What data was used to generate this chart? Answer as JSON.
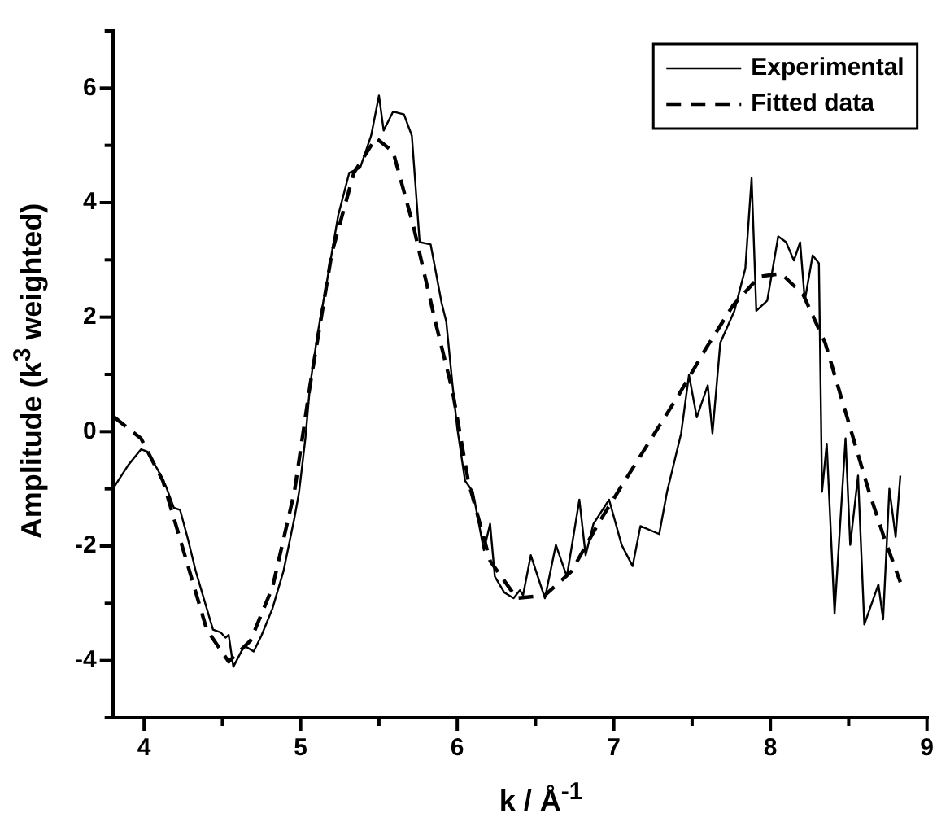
{
  "chart_data": {
    "type": "line",
    "xlabel": "k / Å$^{-1}$",
    "ylabel": "Amplitude (k$^{3}$ weighted)",
    "xlim": [
      3.8,
      9
    ],
    "ylim": [
      -5,
      7
    ],
    "xticks": [
      4,
      {
        "value": 4.5,
        "label": null
      },
      5,
      {
        "value": 5.5,
        "label": null
      },
      6,
      {
        "value": 6.5,
        "label": null
      },
      7,
      {
        "value": 7.5,
        "label": null
      },
      8,
      {
        "value": 8.5,
        "label": null
      },
      9
    ],
    "yticks": [
      {
        "value": -5,
        "label": null
      },
      -4,
      {
        "value": -3,
        "label": null
      },
      -2,
      {
        "value": -1,
        "label": null
      },
      0,
      {
        "value": 1,
        "label": null
      },
      2,
      {
        "value": 3,
        "label": null
      },
      4,
      {
        "value": 5,
        "label": null
      },
      6,
      {
        "value": 7,
        "label": null
      }
    ],
    "grid": false,
    "legend": "top right",
    "marker": "none",
    "series": [
      {
        "name": "Experimental",
        "color": "#000000",
        "line_style": "solid",
        "x": [
          3.81,
          3.9,
          3.98,
          4.02,
          4.09,
          4.14,
          4.19,
          4.23,
          4.28,
          4.33,
          4.4,
          4.44,
          4.49,
          4.52,
          4.54,
          4.57,
          4.64,
          4.7,
          4.75,
          4.82,
          4.89,
          4.96,
          4.99,
          5.03,
          5.06,
          5.11,
          5.17,
          5.24,
          5.31,
          5.38,
          5.45,
          5.5,
          5.53,
          5.59,
          5.66,
          5.71,
          5.76,
          5.83,
          5.9,
          5.93,
          5.97,
          6.0,
          6.05,
          6.1,
          6.17,
          6.21,
          6.24,
          6.3,
          6.36,
          6.4,
          6.42,
          6.47,
          6.56,
          6.63,
          6.7,
          6.78,
          6.82,
          6.87,
          6.97,
          7.05,
          7.12,
          7.17,
          7.29,
          7.34,
          7.43,
          7.48,
          7.53,
          7.6,
          7.63,
          7.68,
          7.77,
          7.84,
          7.88,
          7.91,
          7.98,
          8.05,
          8.1,
          8.15,
          8.19,
          8.22,
          8.27,
          8.31,
          8.33,
          8.36,
          8.41,
          8.48,
          8.51,
          8.56,
          8.6,
          8.69,
          8.72,
          8.76,
          8.8,
          8.83
        ],
        "values": [
          -0.96,
          -0.58,
          -0.31,
          -0.35,
          -0.68,
          -0.96,
          -1.33,
          -1.37,
          -1.88,
          -2.44,
          -3.09,
          -3.46,
          -3.51,
          -3.6,
          -3.55,
          -4.11,
          -3.74,
          -3.84,
          -3.56,
          -3.09,
          -2.44,
          -1.51,
          -1.05,
          -0.12,
          0.81,
          1.74,
          2.66,
          3.78,
          4.52,
          4.61,
          5.17,
          5.87,
          5.26,
          5.59,
          5.54,
          5.17,
          3.31,
          3.27,
          2.25,
          1.92,
          0.81,
          0.06,
          -0.86,
          -1.05,
          -2.07,
          -1.61,
          -2.53,
          -2.81,
          -2.91,
          -2.77,
          -2.86,
          -2.16,
          -2.91,
          -1.98,
          -2.53,
          -1.19,
          -2.16,
          -1.61,
          -1.19,
          -1.98,
          -2.35,
          -1.65,
          -1.79,
          -1.05,
          -0.03,
          0.99,
          0.25,
          0.81,
          -0.03,
          1.55,
          2.11,
          2.85,
          4.43,
          2.11,
          2.29,
          3.41,
          3.31,
          2.99,
          3.31,
          2.29,
          3.08,
          2.94,
          -1.05,
          -0.21,
          -3.18,
          -0.12,
          -1.98,
          -0.77,
          -3.37,
          -2.67,
          -3.28,
          -1.0,
          -1.84,
          -0.77
        ]
      },
      {
        "name": "Fitted data",
        "color": "#000000",
        "line_style": "dashed",
        "x": [
          3.81,
          3.98,
          4.12,
          4.26,
          4.4,
          4.54,
          4.68,
          4.82,
          4.96,
          5.06,
          5.2,
          5.34,
          5.48,
          5.59,
          5.72,
          5.86,
          5.97,
          6.07,
          6.21,
          6.38,
          6.56,
          6.73,
          6.9,
          7.07,
          7.24,
          7.41,
          7.59,
          7.76,
          7.93,
          8.07,
          8.21,
          8.35,
          8.49,
          8.63,
          8.73,
          8.83
        ],
        "values": [
          0.25,
          -0.12,
          -0.86,
          -2.16,
          -3.46,
          -4.02,
          -3.65,
          -2.72,
          -1.05,
          0.81,
          3.13,
          4.52,
          5.13,
          4.89,
          3.59,
          1.92,
          0.71,
          -0.86,
          -2.26,
          -2.91,
          -2.86,
          -2.44,
          -1.61,
          -0.86,
          -0.12,
          0.62,
          1.46,
          2.2,
          2.71,
          2.76,
          2.39,
          1.55,
          0.25,
          -1.05,
          -1.88,
          -2.63
        ]
      }
    ]
  }
}
